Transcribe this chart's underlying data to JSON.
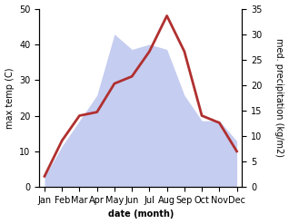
{
  "months": [
    "Jan",
    "Feb",
    "Mar",
    "Apr",
    "May",
    "Jun",
    "Jul",
    "Aug",
    "Sep",
    "Oct",
    "Nov",
    "Dec"
  ],
  "temperature": [
    3,
    13,
    20,
    21,
    29,
    31,
    38,
    48,
    38,
    20,
    18,
    10
  ],
  "precipitation": [
    2,
    8,
    13,
    18,
    30,
    27,
    28,
    27,
    18,
    13,
    13,
    9
  ],
  "temp_color": "#b03030",
  "precip_fill_color": "#c5cdf0",
  "ylabel_left": "max temp (C)",
  "ylabel_right": "med. precipitation (kg/m2)",
  "xlabel": "date (month)",
  "ylim_left": [
    0,
    50
  ],
  "ylim_right": [
    0,
    35
  ],
  "yticks_left": [
    0,
    10,
    20,
    30,
    40,
    50
  ],
  "yticks_right": [
    0,
    5,
    10,
    15,
    20,
    25,
    30,
    35
  ],
  "background_color": "#ffffff",
  "label_fontsize": 7,
  "tick_fontsize": 7
}
